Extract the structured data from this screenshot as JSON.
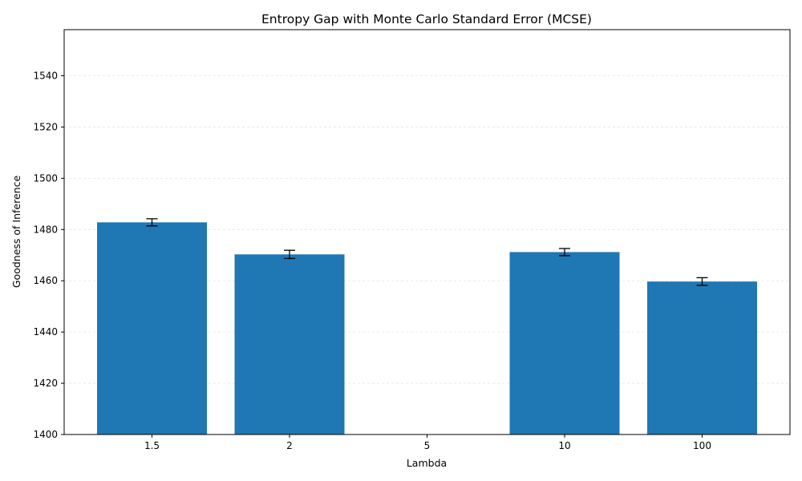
{
  "chart_data": {
    "type": "bar",
    "title": "Entropy Gap with Monte Carlo Standard Error (MCSE)",
    "xlabel": "Lambda",
    "ylabel": "Goodness of Inference",
    "categories": [
      "1.5",
      "2",
      "5",
      "10",
      "100"
    ],
    "values": [
      1482.8,
      1470.3,
      null,
      1471.2,
      1459.7
    ],
    "errors": [
      1.4,
      1.6,
      null,
      1.4,
      1.5
    ],
    "ylim": [
      1400,
      1558
    ],
    "yticks": [
      1400,
      1420,
      1440,
      1460,
      1480,
      1500,
      1520,
      1540
    ],
    "grid": true,
    "bar_color": "#1f77b4",
    "error_color": "#000000"
  }
}
